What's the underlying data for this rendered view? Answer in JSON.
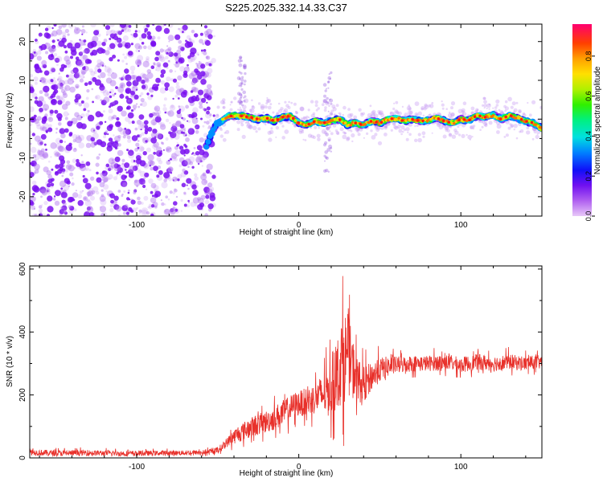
{
  "title": "S225.2025.332.14.33.C37",
  "colors": {
    "snr_line": "#e8302a",
    "scatter_noise": "#7a1cf0",
    "frame": "#000000"
  },
  "colorbar": {
    "label": "Normalized spectral amplitude",
    "ticks": [
      "0.0",
      "0.2",
      "0.4",
      "0.6",
      "0.8"
    ],
    "tick_values": [
      0.0,
      0.2,
      0.4,
      0.6,
      0.8
    ],
    "range": [
      0,
      0.96
    ],
    "colormap": "rainbow (purple-blue-cyan-green-yellow-orange-red)"
  },
  "chart_data": [
    {
      "type": "scatter",
      "xlabel": "Height of straight line (km)",
      "ylabel": "Frequency (Hz)",
      "xlim": [
        -166,
        150
      ],
      "ylim": [
        -25,
        24.5
      ],
      "xticks": [
        -100,
        0,
        100
      ],
      "xtick_labels": [
        "-100",
        "0",
        "100"
      ],
      "yticks": [
        -20,
        -10,
        0,
        10,
        20
      ],
      "ytick_labels": [
        "-20",
        "-10",
        "0",
        "10",
        "20"
      ],
      "grid": false,
      "noise_region_x": [
        -166,
        -52
      ],
      "ridge": {
        "x": [
          -57,
          -54,
          -50,
          -45,
          -40,
          -35,
          -30,
          -25,
          -20,
          -15,
          -10,
          -5,
          0,
          5,
          10,
          15,
          20,
          25,
          30,
          35,
          40,
          45,
          50,
          55,
          60,
          65,
          70,
          75,
          80,
          85,
          90,
          95,
          100,
          105,
          110,
          115,
          120,
          125,
          130,
          135,
          140,
          145,
          150
        ],
        "y": [
          -7,
          -3.5,
          -1,
          0.5,
          1,
          0.8,
          0.5,
          0,
          0.3,
          -0.5,
          0.5,
          0.8,
          -1,
          -1.5,
          -0.5,
          -1,
          -0.5,
          0,
          -1.5,
          -1,
          -1.5,
          -0.5,
          -1,
          0,
          0.2,
          -0.5,
          0,
          -0.5,
          -0.3,
          0.3,
          -0.5,
          -1,
          0,
          -0.3,
          1,
          0.5,
          1,
          0,
          1,
          0.3,
          -0.5,
          -1,
          -2.5
        ]
      }
    },
    {
      "type": "line",
      "xlabel": "Height of straight line (km)",
      "ylabel": "SNR (10 * v/v)",
      "xlim": [
        -166,
        150
      ],
      "ylim": [
        0,
        610
      ],
      "xticks": [
        -100,
        0,
        100
      ],
      "xtick_labels": [
        "-100",
        "0",
        "100"
      ],
      "yticks": [
        0,
        200,
        400,
        600
      ],
      "ytick_labels": [
        "0",
        "200",
        "400",
        "600"
      ],
      "grid": false,
      "series": [
        {
          "x": [
            -166,
            -150,
            -130,
            -110,
            -90,
            -70,
            -55,
            -50,
            -46,
            -42,
            -38,
            -34,
            -30,
            -26,
            -22,
            -18,
            -14,
            -10,
            -6,
            -2,
            2,
            6,
            10,
            14,
            18,
            20,
            22,
            24,
            26,
            28,
            30,
            32,
            34,
            36,
            40,
            45,
            50,
            55,
            60,
            70,
            80,
            90,
            100,
            110,
            120,
            130,
            140,
            150
          ],
          "values": [
            18,
            15,
            16,
            14,
            15,
            16,
            18,
            25,
            40,
            60,
            75,
            85,
            95,
            105,
            110,
            120,
            130,
            140,
            155,
            170,
            175,
            180,
            190,
            200,
            210,
            230,
            250,
            270,
            300,
            320,
            330,
            310,
            280,
            250,
            230,
            260,
            280,
            290,
            295,
            300,
            300,
            305,
            295,
            305,
            300,
            305,
            300,
            305
          ],
          "envelope": {
            "x": [
              -166,
              -120,
              -60,
              -50,
              -44,
              -38,
              -30,
              -20,
              -10,
              0,
              10,
              16,
              20,
              24,
              26,
              28,
              30,
              32,
              34,
              38,
              45,
              60,
              80,
              100,
              120,
              150
            ],
            "low": [
              5,
              5,
              5,
              10,
              20,
              30,
              40,
              55,
              70,
              90,
              100,
              90,
              60,
              50,
              40,
              35,
              40,
              80,
              120,
              160,
              220,
              250,
              260,
              255,
              260,
              265
            ],
            "high": [
              45,
              40,
              35,
              50,
              80,
              140,
              170,
              200,
              240,
              250,
              300,
              360,
              440,
              520,
              560,
              610,
              600,
              500,
              450,
              420,
              400,
              360,
              360,
              355,
              360,
              355
            ]
          }
        }
      ]
    }
  ]
}
